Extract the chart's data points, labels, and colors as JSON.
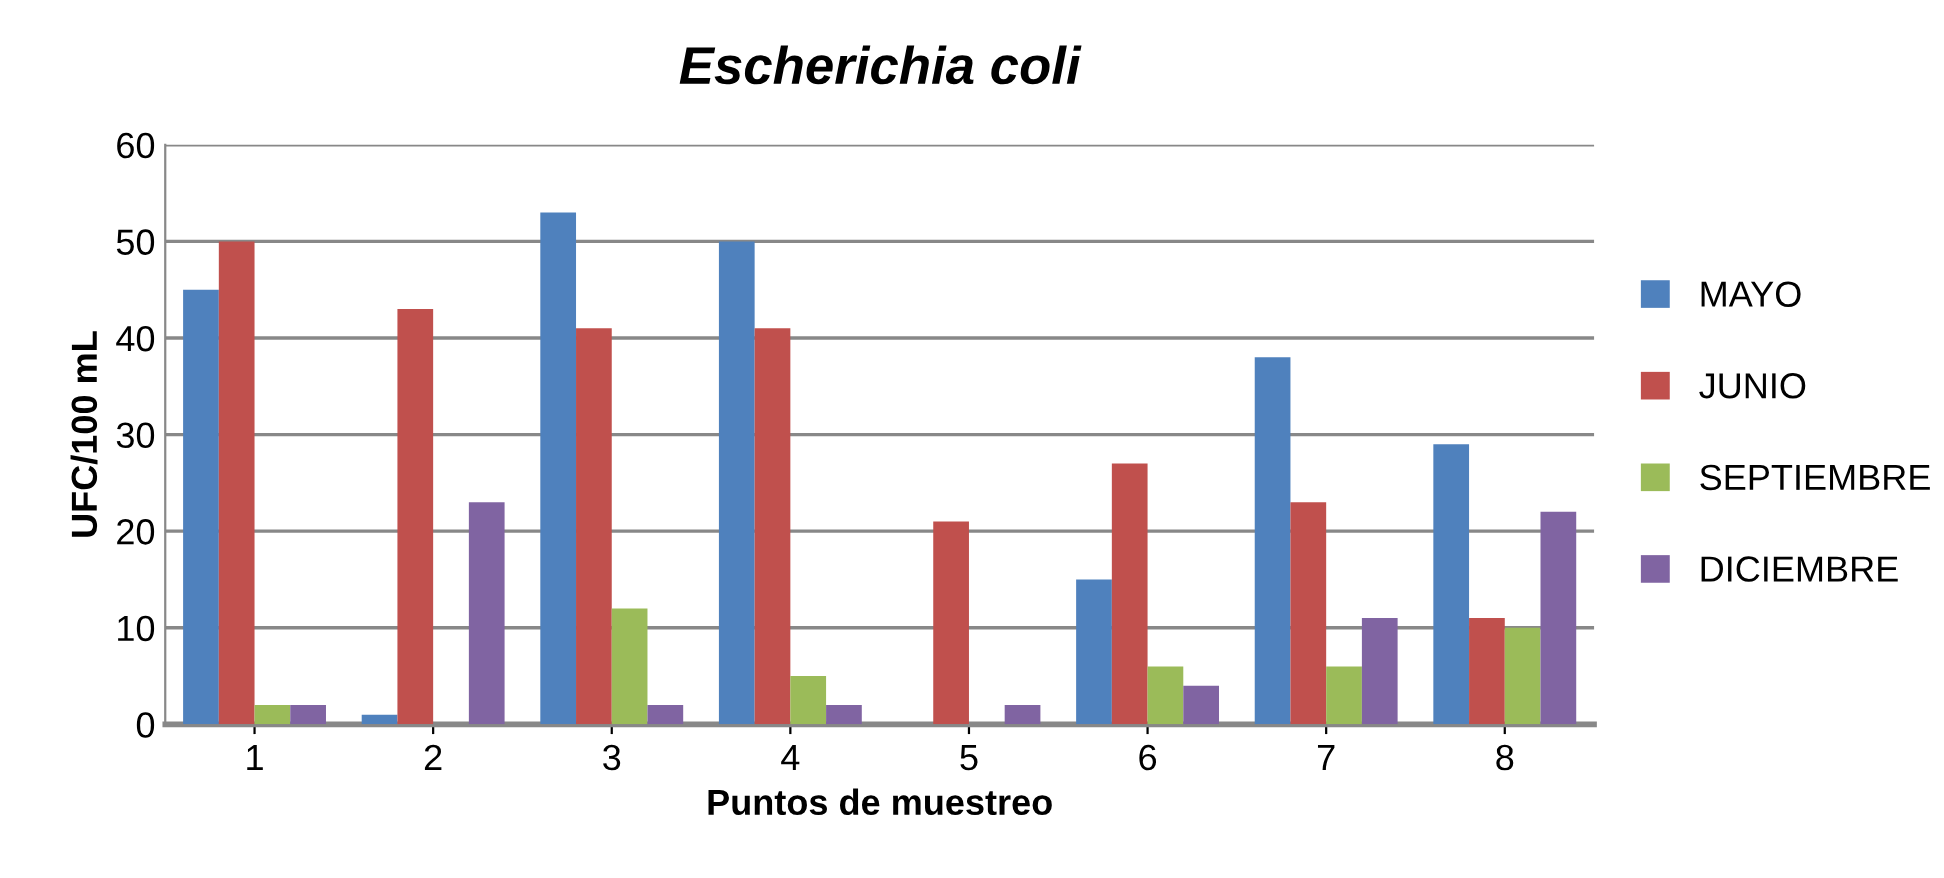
{
  "chart_data": {
    "type": "bar",
    "title": "Escherichia coli",
    "xlabel": "Puntos de muestreo",
    "ylabel": "UFC/100 mL",
    "categories": [
      "1",
      "2",
      "3",
      "4",
      "5",
      "6",
      "7",
      "8"
    ],
    "series": [
      {
        "name": "MAYO",
        "color": "#4f81bd",
        "values": [
          45,
          1,
          53,
          50,
          0,
          15,
          38,
          29
        ]
      },
      {
        "name": "JUNIO",
        "color": "#c0504d",
        "values": [
          50,
          43,
          41,
          41,
          21,
          27,
          23,
          11
        ]
      },
      {
        "name": "SEPTIEMBRE",
        "color": "#9bbb59",
        "values": [
          2,
          0,
          12,
          5,
          0,
          6,
          6,
          10
        ]
      },
      {
        "name": "DICIEMBRE",
        "color": "#8064a2",
        "values": [
          2,
          23,
          2,
          2,
          2,
          4,
          11,
          22
        ]
      }
    ],
    "ylim": [
      0,
      60
    ],
    "yticks": [
      0,
      10,
      20,
      30,
      40,
      50,
      60
    ],
    "grid": "y",
    "legend": "right"
  }
}
